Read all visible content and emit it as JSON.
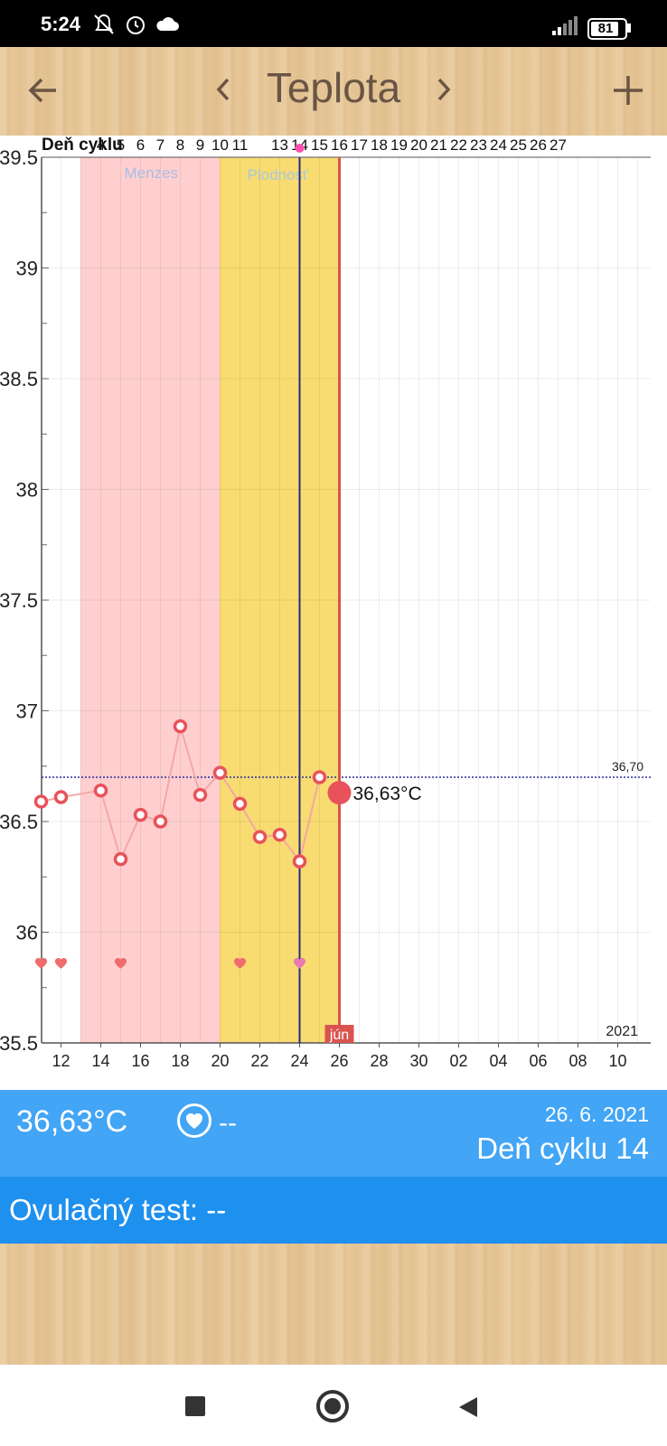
{
  "status": {
    "time": "5:24",
    "battery": "81",
    "icons": [
      "mute-bell-icon",
      "alarm-clock-icon",
      "cloud-icon",
      "signal-icon",
      "battery-icon"
    ]
  },
  "header": {
    "title": "Teplota",
    "back_icon": "arrow-left-icon",
    "prev_icon": "chevron-left-icon",
    "next_icon": "chevron-right-icon",
    "add_icon": "plus-icon"
  },
  "chart_data": {
    "type": "line",
    "cycle_label": "Deň cyklu",
    "cycle_days": [
      "4",
      "5",
      "6",
      "7",
      "8",
      "9",
      "10",
      "11",
      "",
      "13",
      "14",
      "15",
      "16",
      "17",
      "18",
      "19",
      "20",
      "21",
      "22",
      "23",
      "24",
      "25",
      "26",
      "27"
    ],
    "x_labels": [
      "12",
      "14",
      "16",
      "18",
      "20",
      "22",
      "24",
      "26",
      "28",
      "30",
      "02",
      "04",
      "06",
      "08",
      "10"
    ],
    "y_ticks": [
      "39.5",
      "39",
      "38.5",
      "38",
      "37.5",
      "37",
      "36.5",
      "36",
      "35.5"
    ],
    "ylim": [
      35.5,
      39.5
    ],
    "x": [
      11,
      12,
      14,
      15,
      16,
      17,
      18,
      19,
      20,
      21,
      22,
      23,
      24,
      25
    ],
    "values": [
      36.59,
      36.61,
      36.64,
      36.33,
      36.53,
      36.5,
      36.93,
      36.62,
      36.72,
      36.58,
      36.43,
      36.44,
      36.32,
      36.7
    ],
    "current": {
      "x": 26,
      "value": 36.63,
      "label": "36,63°C"
    },
    "baseline": {
      "value": 36.7,
      "label": "36,70"
    },
    "heart_days": [
      11,
      12,
      15,
      21,
      24
    ],
    "bands": [
      {
        "label": "Menzes",
        "from": 13,
        "to": 20,
        "color": "#ffcfcf"
      },
      {
        "label": "Plodnosť",
        "from": 20,
        "to": 26,
        "color": "#f8dc72"
      }
    ],
    "ovulation_day": 24,
    "today_day": 26,
    "month_label": "jún",
    "year_label": "2021",
    "colors": {
      "line": "#f4a6a6",
      "marker": "#e8525a",
      "today_line": "#d9534f",
      "ovulation_line": "#2c2c7a"
    }
  },
  "info": {
    "temp": "36,63°C",
    "sex": "--",
    "date": "26. 6. 2021",
    "cycle_day": "Deň cyklu 14",
    "ovulation_test": "Ovulačný test: --"
  }
}
